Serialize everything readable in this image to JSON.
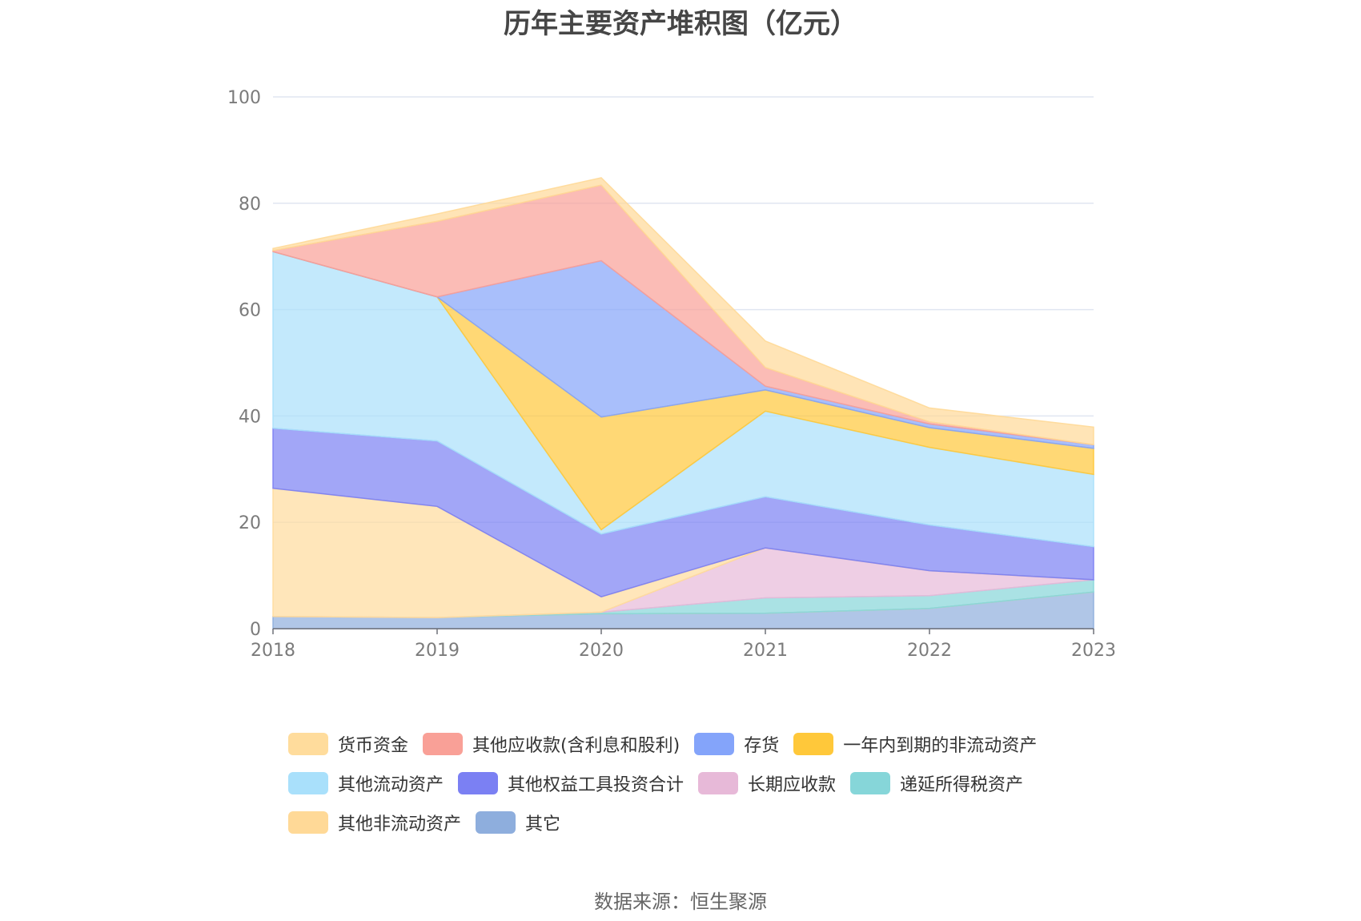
{
  "chart_data": {
    "type": "area",
    "stacked": true,
    "title": "历年主要资产堆积图（亿元）",
    "x": [
      "2018",
      "2019",
      "2020",
      "2021",
      "2022",
      "2023"
    ],
    "ylim": [
      0,
      100
    ],
    "yticks": [
      0,
      20,
      40,
      60,
      80,
      100
    ],
    "grid": true,
    "legend_position": "bottom",
    "series": [
      {
        "name": "其它",
        "color": "#8eaedd",
        "values": [
          2.3,
          2.1,
          2.8,
          2.9,
          3.8,
          6.9
        ]
      },
      {
        "name": "其他非流动资产",
        "color": "#ffd997",
        "values": [
          0,
          0,
          0,
          0,
          0,
          0
        ]
      },
      {
        "name": "递延所得税资产",
        "color": "#86d6d9",
        "values": [
          0,
          0,
          0.3,
          2.9,
          2.4,
          2.3
        ]
      },
      {
        "name": "长期应收款",
        "color": "#e7b9d8",
        "values": [
          0,
          0,
          0,
          9.4,
          4.7,
          0
        ]
      },
      {
        "name": "货币资金",
        "color": "#ffdc9c",
        "values": [
          24.1,
          20.9,
          2.9,
          0,
          0,
          0
        ]
      },
      {
        "name": "其他权益工具投资合计",
        "color": "#7b80f3",
        "values": [
          11.3,
          12.3,
          11.8,
          9.6,
          8.6,
          6.2
        ]
      },
      {
        "name": "其他流动资产",
        "color": "#a9e0fb",
        "values": [
          33.2,
          27.1,
          0.8,
          16.1,
          14.6,
          13.6
        ]
      },
      {
        "name": "一年内到期的非流动资产",
        "color": "#ffc83a",
        "values": [
          0,
          0,
          21.2,
          4.0,
          3.7,
          4.9
        ]
      },
      {
        "name": "存货",
        "color": "#84a4fa",
        "values": [
          0,
          0,
          29.4,
          0.7,
          0.7,
          0.7
        ]
      },
      {
        "name": "其他应收款(含利息和股利)",
        "color": "#f9a097",
        "values": [
          0.2,
          14.2,
          14.2,
          3.5,
          0.4,
          0
        ]
      },
      {
        "name": "其他非流动资产",
        "color": "#ffd997",
        "values": [
          0.4,
          1.4,
          1.4,
          5.0,
          2.6,
          3.3
        ]
      }
    ],
    "legend": [
      [
        "货币资金",
        "其他应收款(含利息和股利)",
        "存货",
        "一年内到期的非流动资产"
      ],
      [
        "其他流动资产",
        "其他权益工具投资合计",
        "长期应收款",
        "递延所得税资产"
      ],
      [
        "其他非流动资产",
        "其它"
      ]
    ],
    "legend_colors": {
      "货币资金": "#ffdc9c",
      "其他应收款(含利息和股利)": "#f9a097",
      "存货": "#84a4fa",
      "一年内到期的非流动资产": "#ffc83a",
      "其他流动资产": "#a9e0fb",
      "其他权益工具投资合计": "#7b80f3",
      "长期应收款": "#e7b9d8",
      "递延所得税资产": "#86d6d9",
      "其他非流动资产": "#ffd997",
      "其它": "#8eaedd"
    }
  },
  "source": "数据来源：恒生聚源"
}
